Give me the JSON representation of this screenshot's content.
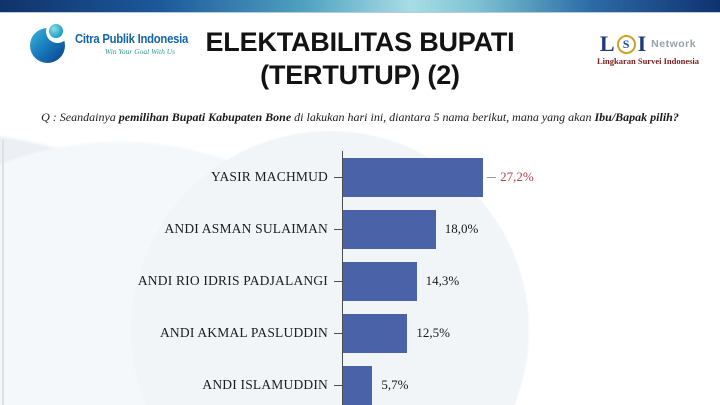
{
  "slide": {
    "title_line1": "ELEKTABILITAS BUPATI",
    "title_line2": "(TERTUTUP) (2)",
    "question_segments": [
      {
        "text": "Q : Seandainya ",
        "bold": false
      },
      {
        "text": "pemilihan Bupati Kabupaten Bone",
        "bold": true
      },
      {
        "text": " di lakukan hari ini, diantara 5 nama berikut, mana yang akan ",
        "bold": false
      },
      {
        "text": "Ibu/Bapak pilih?",
        "bold": true
      }
    ]
  },
  "logos": {
    "citra_publik": {
      "name": "Citra Publik Indonesia",
      "tagline": "Win Your Goal With Us"
    },
    "lsi": {
      "letter_l": "L",
      "letter_s": "S",
      "letter_i": "I",
      "network": "Network",
      "subtitle": "Lingkaran Survei Indonesia"
    }
  },
  "chart_data": {
    "type": "bar",
    "orientation": "horizontal",
    "title": "ELEKTABILITAS BUPATI (TERTUTUP) (2)",
    "categories": [
      "YASIR MACHMUD",
      "ANDI ASMAN SULAIMAN",
      "ANDI RIO IDRIS PADJALANGI",
      "ANDI AKMAL PASLUDDIN",
      "ANDI ISLAMUDDIN"
    ],
    "values": [
      27.2,
      18.0,
      14.3,
      12.5,
      5.7
    ],
    "value_labels": [
      "27,2%",
      "18,0%",
      "14,3%",
      "12,5%",
      "5,7%"
    ],
    "unit": "%",
    "xlim": [
      0,
      30
    ],
    "grid": false,
    "legend": false,
    "bar_color": "#4a63a8",
    "highlight_index": 0,
    "highlight_color": "#c0404a"
  },
  "colors": {
    "topbar_navy": "#10336b",
    "topbar_teal": "#a8dde4",
    "citra_blue": "#1565a8",
    "citra_teal": "#2f9a93",
    "lsi_navy": "#203a7d",
    "lsi_gold": "#c9a227",
    "lsi_maroon": "#7a1d20",
    "axis_gray": "#4d4d4d"
  }
}
